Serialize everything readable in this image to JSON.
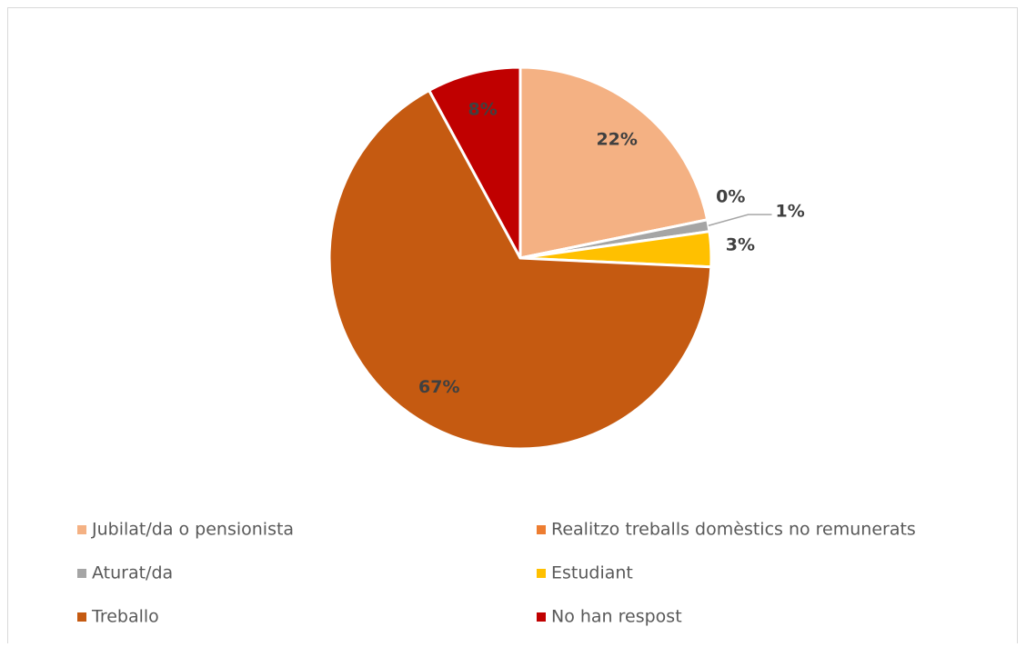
{
  "chart_data": {
    "type": "pie",
    "categories": [
      "Jubilat/da o pensionista",
      "Realitzo treballs domèstics no remunerats",
      "Aturat/da",
      "Estudiant",
      "Treballo",
      "No han respost"
    ],
    "values": [
      22,
      0,
      1,
      3,
      67,
      8
    ],
    "value_labels": [
      "22%",
      "0%",
      "1%",
      "3%",
      "67%",
      "8%"
    ],
    "colors": [
      "#f4b183",
      "#ed7d31",
      "#a5a5a5",
      "#ffc000",
      "#c55a11",
      "#c00000"
    ],
    "legend": "bottom"
  }
}
